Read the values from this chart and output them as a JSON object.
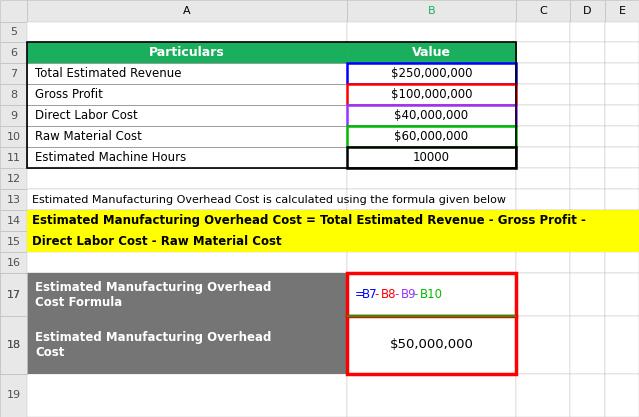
{
  "fig_width": 6.39,
  "fig_height": 4.17,
  "bg_color": "#FFFFFF",
  "header_row_bg": "#1AAF5D",
  "yellow_bg": "#FFFF00",
  "gray_bg": "#757575",
  "gray_text": "#FFFFFF",
  "col_header_bg": "#E8E8E8",
  "col_header_text_color": "#000000",
  "B_col_header_color": "#1AAF5D",
  "row_num_bg": "#E8E8E8",
  "row_num_color": "#505050",
  "grid_line_color": "#BFBFBF",
  "table_items": [
    {
      "label": "Total Estimated Revenue",
      "value": "$250,000,000",
      "border": "#0000FF"
    },
    {
      "label": "Gross Profit",
      "value": "$100,000,000",
      "border": "#FF0000"
    },
    {
      "label": "Direct Labor Cost",
      "value": "$40,000,000",
      "border": "#9933FF"
    },
    {
      "label": "Raw Material Cost",
      "value": "$60,000,000",
      "border": "#00BB00"
    },
    {
      "label": "Estimated Machine Hours",
      "value": "10000",
      "border": "#000000"
    }
  ],
  "formula_parts": [
    {
      "text": "=",
      "color": "#0000FF"
    },
    {
      "text": "B7",
      "color": "#0000FF"
    },
    {
      "text": "-",
      "color": "#FF0000"
    },
    {
      "text": "B8",
      "color": "#FF0000"
    },
    {
      "text": "-",
      "color": "#9933FF"
    },
    {
      "text": "B9",
      "color": "#9933FF"
    },
    {
      "text": "-",
      "color": "#00BB00"
    },
    {
      "text": "B10",
      "color": "#00BB00"
    }
  ],
  "row13_text": "Estimated Manufacturing Overhead Cost is calculated using the formula given below",
  "row14_text": "Estimated Manufacturing Overhead Cost = Total Estimated Revenue - Gross Profit -",
  "row15_text": "Direct Labor Cost - Raw Material Cost",
  "row17_label": "Estimated Manufacturing Overhead\nCost Formula",
  "row18_label": "Estimated Manufacturing Overhead\nCost",
  "row18_value": "$50,000,000",
  "col_A_label": "Particulars",
  "col_B_label": "Value"
}
